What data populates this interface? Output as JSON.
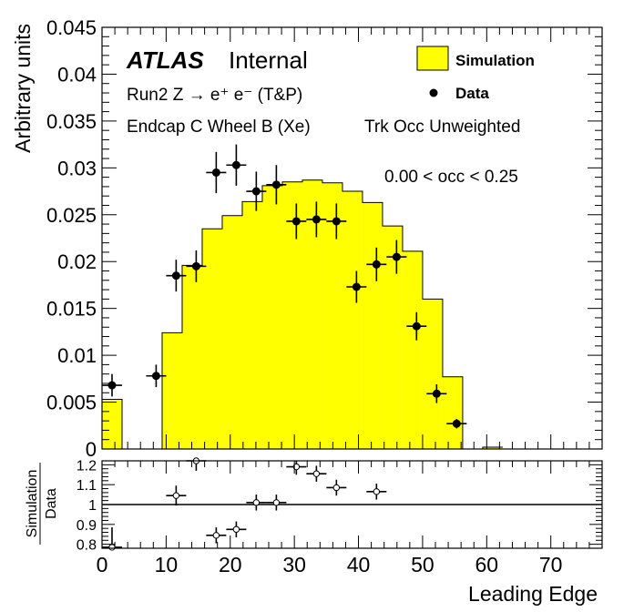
{
  "atlas_label": "ATLAS",
  "atlas_status": "Internal",
  "process_label": "Run2 Z → e⁺ e⁻ (T&P)",
  "region_label": "Endcap C Wheel B (Xe)",
  "weight_label": "Trk Occ Unweighted",
  "occ_label": "0.00 < occ < 0.25",
  "legend": {
    "simulation": "Simulation",
    "data": "Data",
    "simulation_color": "#ffff00"
  },
  "chart_data": [
    {
      "type": "histogram",
      "xlabel": "Leading Edge",
      "ylabel": "Arbitrary units",
      "xlim": [
        0,
        78
      ],
      "ylim": [
        0,
        0.045
      ],
      "bin_width": 3.125,
      "yticks": [
        "0",
        "0.005",
        "0.01",
        "0.015",
        "0.02",
        "0.025",
        "0.03",
        "0.035",
        "0.04",
        "0.045"
      ],
      "grid": false,
      "legend_position": "top-right",
      "series": [
        {
          "name": "Simulation",
          "style": "filled-histogram",
          "color": "#ffff00",
          "bin_start": 0,
          "values": [
            0.0053,
            0.0,
            0.0,
            0.0124,
            0.0196,
            0.0235,
            0.0249,
            0.0264,
            0.0281,
            0.0285,
            0.0287,
            0.0284,
            0.0275,
            0.0263,
            0.0238,
            0.0211,
            0.016,
            0.0077,
            0.0,
            0.0002
          ]
        },
        {
          "name": "Data",
          "style": "points-with-errors",
          "x": [
            1.56,
            8.44,
            11.56,
            14.69,
            17.81,
            20.94,
            24.06,
            27.19,
            30.31,
            33.44,
            36.56,
            39.69,
            42.81,
            45.94,
            49.06,
            52.19,
            55.31
          ],
          "y": [
            0.0068,
            0.0078,
            0.0185,
            0.0195,
            0.0295,
            0.0303,
            0.0275,
            0.0282,
            0.0243,
            0.0245,
            0.0243,
            0.0173,
            0.0197,
            0.0205,
            0.0131,
            0.0059,
            0.0027
          ],
          "yerr": [
            0.0012,
            0.0012,
            0.0017,
            0.0017,
            0.0022,
            0.0022,
            0.0021,
            0.0021,
            0.0019,
            0.0019,
            0.0019,
            0.0017,
            0.0018,
            0.0018,
            0.0015,
            0.001,
            0.0005
          ]
        }
      ]
    },
    {
      "type": "scatter",
      "ylabel_numerator": "Simulation",
      "ylabel_denominator": "Data",
      "xlabel": "Leading Edge",
      "xlim": [
        0,
        78
      ],
      "ylim": [
        0.78,
        1.22
      ],
      "xticks": [
        "0",
        "10",
        "20",
        "30",
        "40",
        "50",
        "60",
        "70"
      ],
      "yticks": [
        "0.8",
        "0.9",
        "1",
        "1.1",
        "1.2"
      ],
      "reference_line": 1,
      "grid": false,
      "series": [
        {
          "name": "Simulation/Data",
          "x": [
            1.56,
            11.56,
            14.69,
            17.81,
            20.94,
            24.06,
            27.19,
            30.31,
            33.44,
            36.56,
            42.81
          ],
          "y": [
            0.785,
            1.045,
            1.22,
            0.845,
            0.875,
            1.01,
            1.01,
            1.19,
            1.155,
            1.085,
            1.065
          ],
          "yerr": [
            0.1,
            0.05,
            0.05,
            0.04,
            0.04,
            0.04,
            0.04,
            0.04,
            0.04,
            0.04,
            0.04
          ]
        }
      ]
    }
  ]
}
